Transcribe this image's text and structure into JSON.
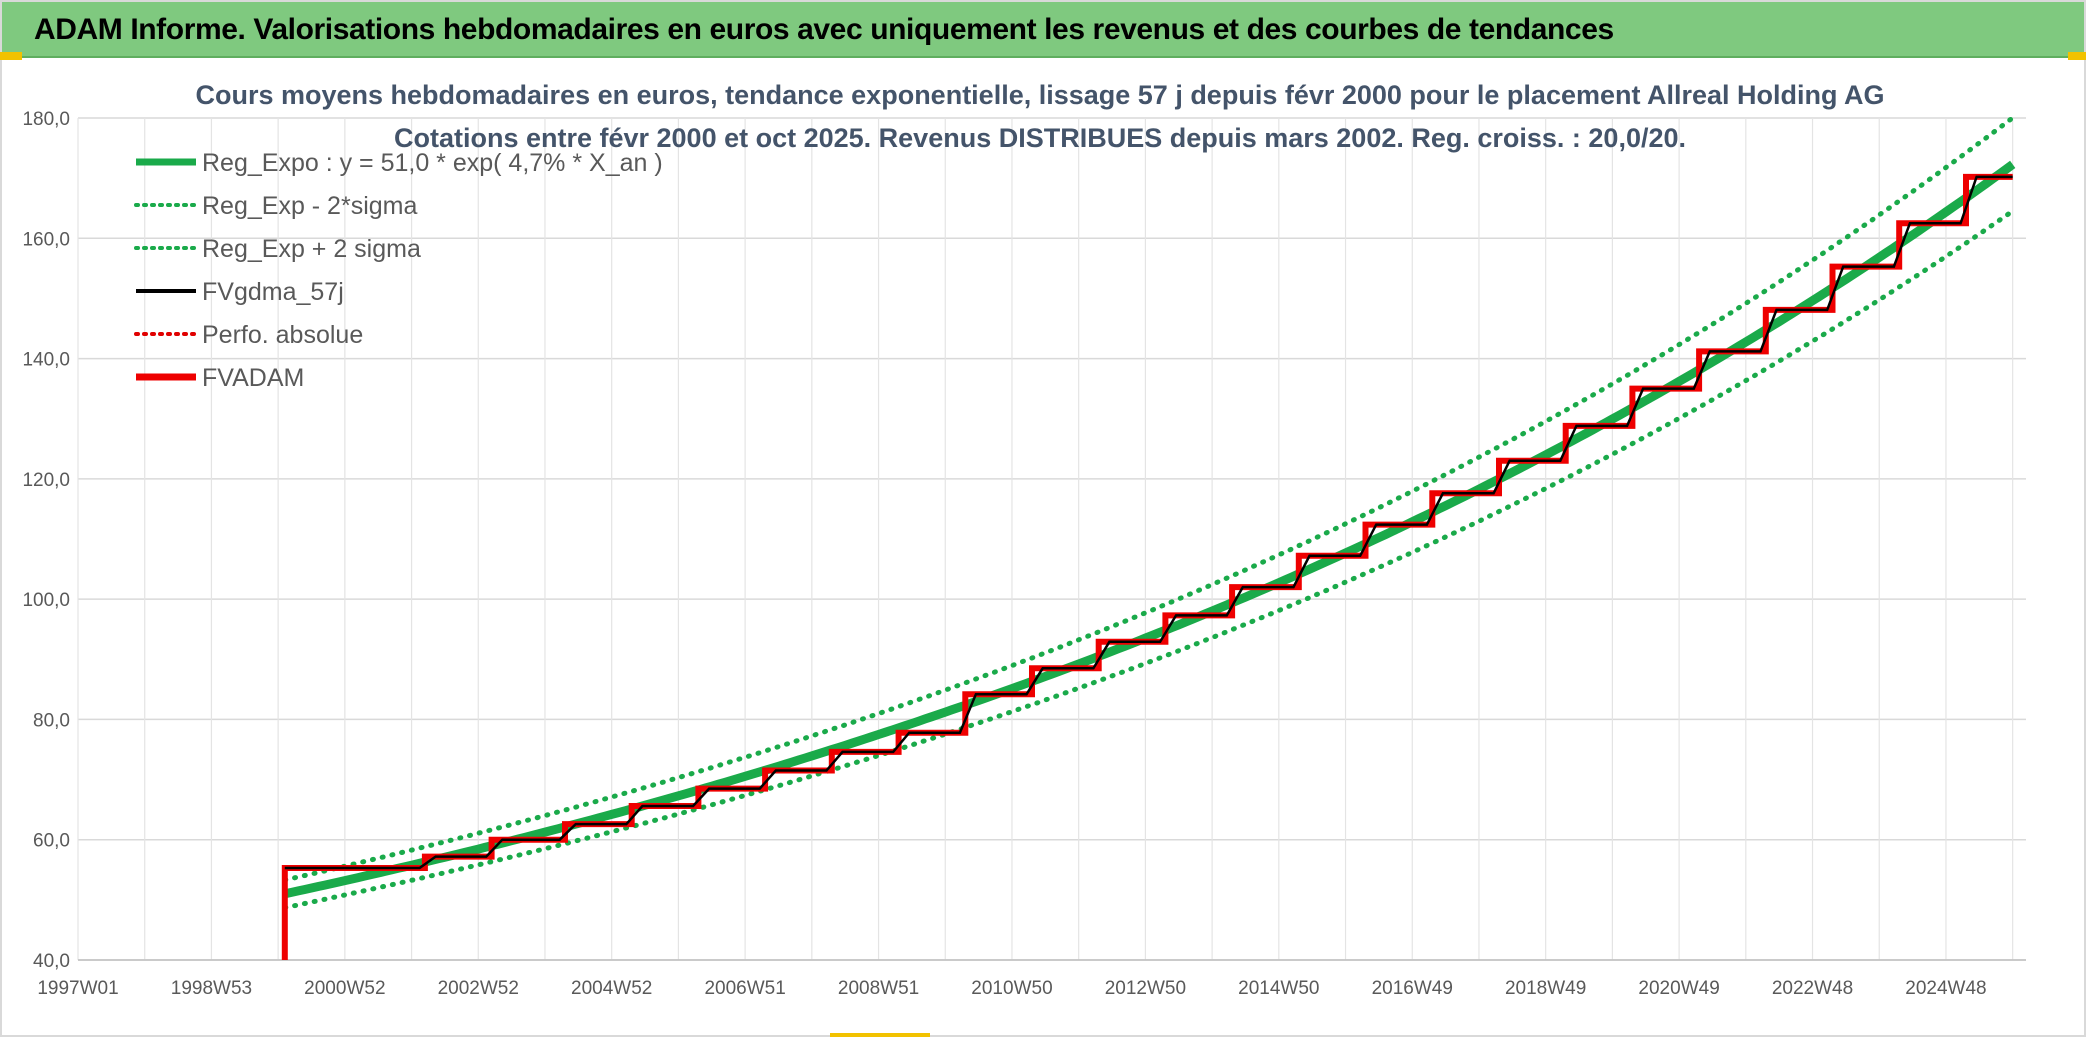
{
  "header": {
    "title": "ADAM Informe. Valorisations hebdomadaires en euros avec uniquement les revenus et des courbes de tendances",
    "background": "#7fc97f"
  },
  "chart_data": {
    "type": "line",
    "title": "Cours moyens hebdomadaires en euros, tendance exponentielle, lissage 57 j depuis févr 2000 pour le placement Allreal Holding AG",
    "subtitle": "Cotations entre févr 2000 et oct 2025. Revenus DISTRIBUES depuis mars 2002. Reg. croiss. : 20,0/20.",
    "xlabel": "",
    "ylabel": "",
    "ylim": [
      40,
      180
    ],
    "y_ticks": [
      "40,0",
      "60,0",
      "80,0",
      "100,0",
      "120,0",
      "140,0",
      "160,0",
      "180,0"
    ],
    "x_ticks": [
      "1997W01",
      "1998W53",
      "2000W52",
      "2002W52",
      "2004W52",
      "2006W51",
      "2008W51",
      "2010W50",
      "2012W50",
      "2014W50",
      "2016W49",
      "2018W49",
      "2020W49",
      "2022W48",
      "2024W48"
    ],
    "x_tick_years": [
      1997.0,
      1999.0,
      2001.0,
      2003.0,
      2005.0,
      2007.0,
      2009.0,
      2011.0,
      2013.0,
      2015.0,
      2017.0,
      2019.0,
      2021.0,
      2023.0,
      2025.0
    ],
    "xlim": [
      1997.0,
      2026.2
    ],
    "grid": true,
    "legend_position": "top-left",
    "legend": [
      {
        "key": "reg_expo",
        "label": "Reg_Expo : y = 51,0 * exp( 4,7% *  X_an )",
        "color": "#1aaa4a",
        "style": "solid-thick"
      },
      {
        "key": "reg_minus",
        "label": "Reg_Exp - 2*sigma",
        "color": "#1aaa4a",
        "style": "dotted"
      },
      {
        "key": "reg_plus",
        "label": "Reg_Exp + 2 sigma",
        "color": "#1aaa4a",
        "style": "dotted"
      },
      {
        "key": "fvgdma",
        "label": "FVgdma_57j",
        "color": "#000000",
        "style": "solid"
      },
      {
        "key": "perfo",
        "label": "Perfo. absolue",
        "color": "#e00000",
        "style": "dotted"
      },
      {
        "key": "fvadam",
        "label": "FVADAM",
        "color": "#ee0000",
        "style": "solid-thick"
      }
    ],
    "regression": {
      "a": 51.0,
      "rate": 0.047,
      "start_year": 2000.1,
      "end_year": 2026.0,
      "sigma_band_factor": 0.045
    },
    "fvadam_steps": [
      {
        "year": 2000.1,
        "value": 40.0
      },
      {
        "year": 2000.1,
        "value": 55.3
      },
      {
        "year": 2002.2,
        "value": 57.2
      },
      {
        "year": 2003.2,
        "value": 60.0
      },
      {
        "year": 2004.3,
        "value": 62.6
      },
      {
        "year": 2005.3,
        "value": 65.6
      },
      {
        "year": 2006.3,
        "value": 68.5
      },
      {
        "year": 2007.3,
        "value": 71.5
      },
      {
        "year": 2008.3,
        "value": 74.6
      },
      {
        "year": 2009.3,
        "value": 77.8
      },
      {
        "year": 2010.3,
        "value": 84.2
      },
      {
        "year": 2011.3,
        "value": 88.5
      },
      {
        "year": 2012.3,
        "value": 92.9
      },
      {
        "year": 2013.3,
        "value": 97.3
      },
      {
        "year": 2014.3,
        "value": 102.0
      },
      {
        "year": 2015.3,
        "value": 107.2
      },
      {
        "year": 2016.3,
        "value": 112.4
      },
      {
        "year": 2017.3,
        "value": 117.6
      },
      {
        "year": 2018.3,
        "value": 123.0
      },
      {
        "year": 2019.3,
        "value": 128.8
      },
      {
        "year": 2020.3,
        "value": 135.0
      },
      {
        "year": 2021.3,
        "value": 141.2
      },
      {
        "year": 2022.3,
        "value": 148.1
      },
      {
        "year": 2023.3,
        "value": 155.3
      },
      {
        "year": 2024.3,
        "value": 162.5
      },
      {
        "year": 2025.3,
        "value": 170.2
      }
    ],
    "fvadam_end_year": 2026.0
  }
}
